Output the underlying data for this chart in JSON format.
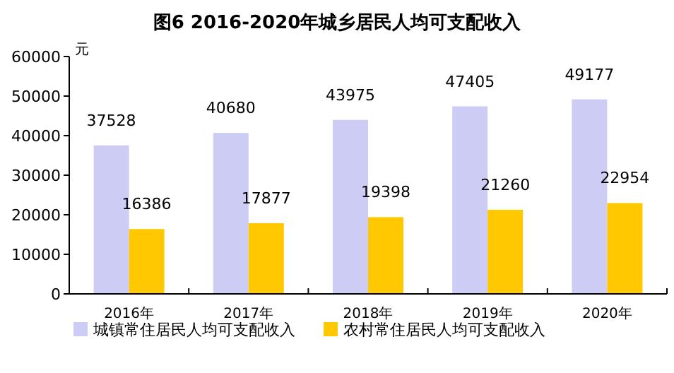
{
  "chart_data": {
    "type": "bar",
    "title": "图6  2016-2020年城乡居民人均可支配收入",
    "ylabel": "元",
    "categories": [
      "2016年",
      "2017年",
      "2018年",
      "2019年",
      "2020年"
    ],
    "series": [
      {
        "name": "城镇常住居民人均可支配收入",
        "color": "#ccccf5",
        "values": [
          37528,
          40680,
          43975,
          47405,
          49177
        ]
      },
      {
        "name": "农村常住居民人均可支配收入",
        "color": "#ffc800",
        "values": [
          16386,
          17877,
          19398,
          21260,
          22954
        ]
      }
    ],
    "ylim": [
      0,
      60000
    ],
    "yticks": [
      0,
      10000,
      20000,
      30000,
      40000,
      50000,
      60000
    ],
    "data_labels": true,
    "legend": "bottom",
    "grid": false
  }
}
